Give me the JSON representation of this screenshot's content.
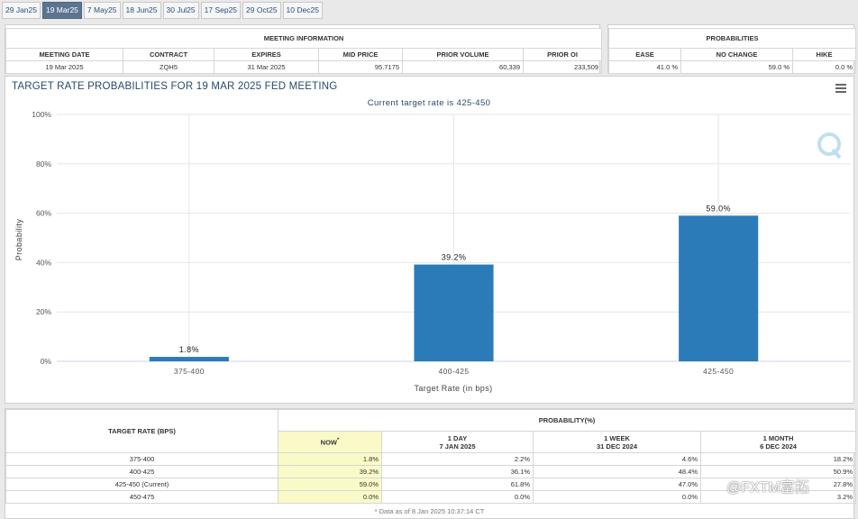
{
  "tabs": [
    "29 Jan25",
    "19 Mar25",
    "7 May25",
    "18 Jun25",
    "30 Jul25",
    "17 Sep25",
    "29 Oct25",
    "10 Dec25"
  ],
  "active_tab": 1,
  "meeting_info": {
    "title": "MEETING INFORMATION",
    "headers": [
      "MEETING DATE",
      "CONTRACT",
      "EXPIRES",
      "MID PRICE",
      "PRIOR VOLUME",
      "PRIOR OI"
    ],
    "values": [
      "19 Mar 2025",
      "ZQH5",
      "31 Mar 2025",
      "95.7175",
      "60,339",
      "233,509"
    ]
  },
  "probabilities": {
    "title": "PROBABILITIES",
    "headers": [
      "EASE",
      "NO CHANGE",
      "HIKE"
    ],
    "values": [
      "41.0 %",
      "59.0 %",
      "0.0 %"
    ]
  },
  "chart_data": {
    "type": "bar",
    "title": "TARGET RATE PROBABILITIES FOR 19 MAR 2025 FED MEETING",
    "subtitle": "Current target rate is 425-450",
    "xlabel": "Target Rate (in bps)",
    "ylabel": "Probability",
    "categories": [
      "375-400",
      "400-425",
      "425-450"
    ],
    "values": [
      1.8,
      39.2,
      59.0
    ],
    "data_labels": [
      "1.8%",
      "39.2%",
      "59.0%"
    ],
    "ylim": [
      0,
      100
    ],
    "yticks": [
      "0%",
      "20%",
      "40%",
      "60%",
      "80%",
      "100%"
    ],
    "bar_color": "#2b7bb9",
    "grid": true,
    "legend": "none"
  },
  "prob_table": {
    "title": "PROBABILITY(%)",
    "col_rate": "TARGET RATE (BPS)",
    "col_now": "NOW",
    "col_now_mark": "*",
    "cols": [
      {
        "line1": "1 DAY",
        "line2": "7 JAN 2025"
      },
      {
        "line1": "1 WEEK",
        "line2": "31 DEC 2024"
      },
      {
        "line1": "1 MONTH",
        "line2": "6 DEC 2024"
      }
    ],
    "rows": [
      {
        "rate": "375-400",
        "now": "1.8%",
        "day": "2.2%",
        "week": "4.6%",
        "month": "18.2%"
      },
      {
        "rate": "400-425",
        "now": "39.2%",
        "day": "36.1%",
        "week": "48.4%",
        "month": "50.9%"
      },
      {
        "rate": "425-450 (Current)",
        "now": "59.0%",
        "day": "61.8%",
        "week": "47.0%",
        "month": "27.8%"
      },
      {
        "rate": "450-475",
        "now": "0.0%",
        "day": "0.0%",
        "week": "0.0%",
        "month": "3.2%"
      }
    ],
    "footnote": "* Data as of 8 Jan 2025 10:37:14 CT"
  },
  "watermark": "@FXTM富拓",
  "colors": {
    "accent": "#5b7591",
    "title": "#274b6d",
    "highlight": "#fafac8"
  }
}
